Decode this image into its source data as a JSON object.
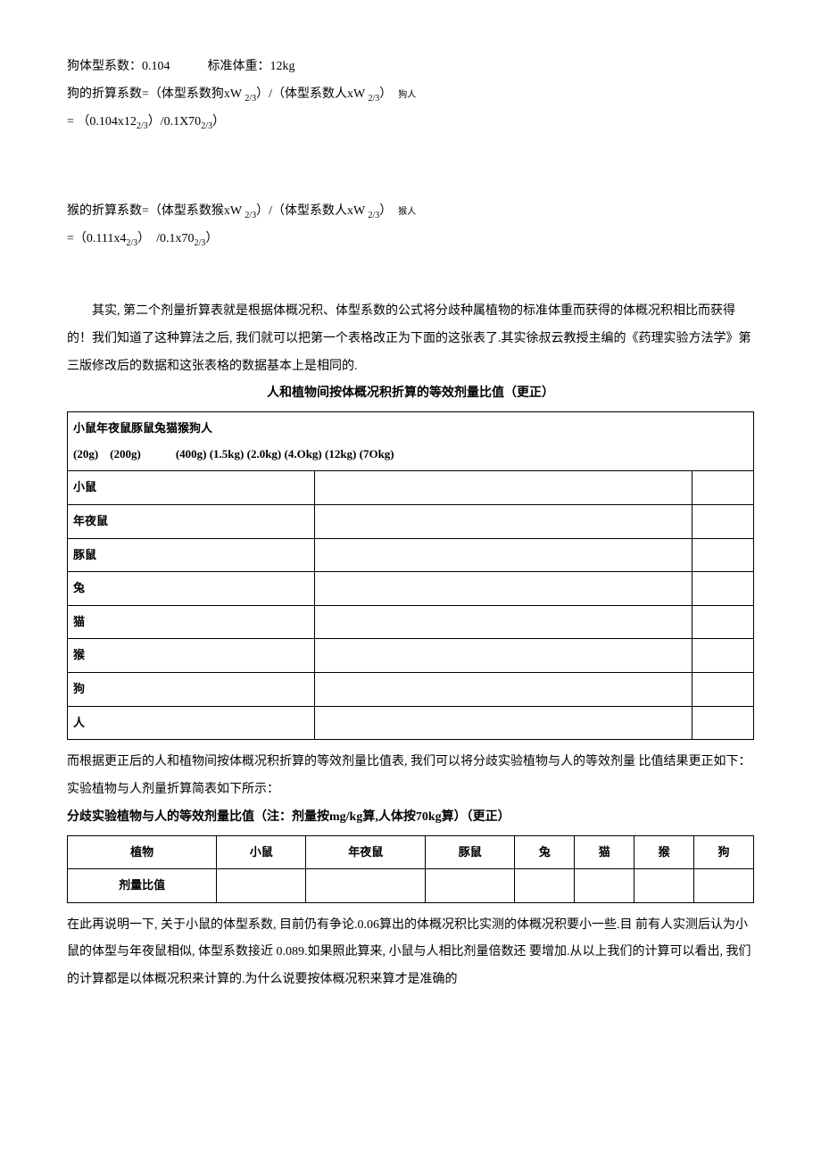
{
  "p1": "狗体型系数：0.104　　　标准体重：12kg",
  "p2a": "狗的折算系数=（体型系数狗xW ",
  "p2b": "）/（体型系数人xW ",
  "p2c": "）　",
  "p2d": "狗人",
  "p3a": "= （0.104x12",
  "p3b": "）/0.1X70",
  "p3c": "）",
  "p4a": "猴的折算系数=（体型系数猴xW ",
  "p4b": "）/（体型系数人xW ",
  "p4c": "）　",
  "p4d": "猴人",
  "p5a": "=（0.111x4",
  "p5b": "）　/0.1x70",
  "p5c": "）",
  "para1": "其实, 第二个剂量折算表就是根据体概况积、体型系数的公式将分歧种属植物的标准体重而获得的体概况积相比而获得的！我们知道了这种算法之后, 我们就可以把第一个表格改正为下面的这张表了.其实徐叔云教授主编的《药理实验方法学》第三版修改后的数据和这张表格的数据基本上是相同的.",
  "table1_title": "人和植物间按体概况积折算的等效剂量比值（更正）",
  "t1_header": "小鼠年夜鼠豚鼠兔猫猴狗人",
  "t1_header2": "(20g)　(200g)　　　(400g) (1.5kg) (2.0kg) (4.Okg) (12kg) (7Okg)",
  "t1_rows": [
    "小鼠",
    "年夜鼠",
    "豚鼠",
    "兔",
    "猫",
    "猴",
    "狗",
    "人"
  ],
  "para2": "而根据更正后的人和植物间按体概况积折算的等效剂量比值表, 我们可以将分歧实验植物与人的等效剂量  比值结果更正如下：",
  "para3": "实验植物与人剂量折算简表如下所示：",
  "table2_title": "分歧实验植物与人的等效剂量比值（注：剂量按mg/kg算,人体按70kg算）（更正）",
  "t2_cols": [
    "植物",
    "小鼠",
    "年夜鼠",
    "豚鼠",
    "兔",
    "猫",
    "猴",
    "狗"
  ],
  "t2_row": "剂量比值",
  "para4": "在此再说明一下, 关于小鼠的体型系数, 目前仍有争论.0.06算出的体概况积比实测的体概况积要小一些.目  前有人实测后认为小鼠的体型与年夜鼠相似, 体型系数接近  0.089.如果照此算来, 小鼠与人相比剂量倍数还  要增加.从以上我们的计算可以看出, 我们的计算都是以体概况积来计算的.为什么说要按体概况积来算才是准确的"
}
